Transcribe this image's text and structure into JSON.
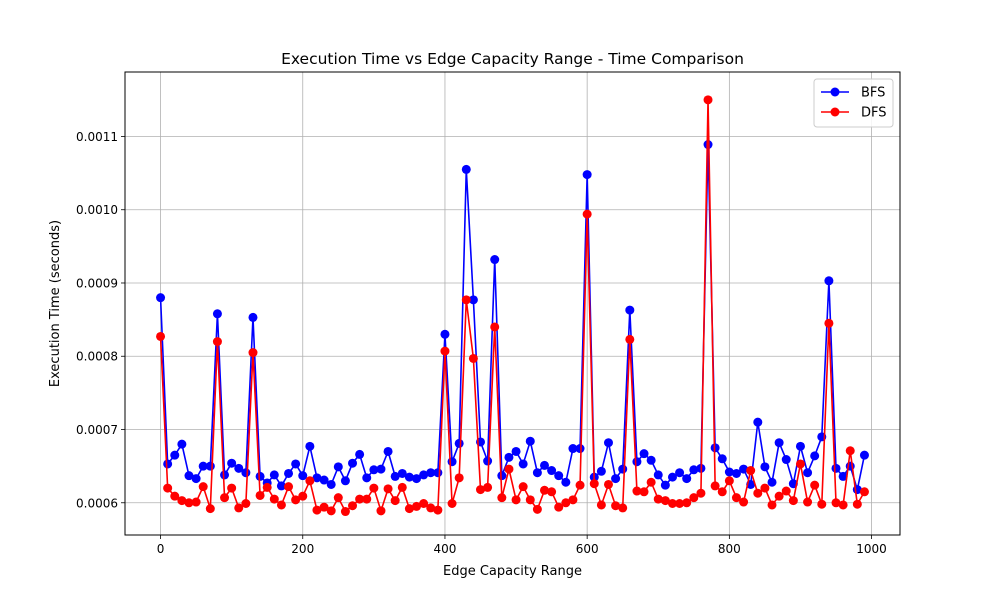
{
  "chart_data": {
    "type": "line",
    "title": "Execution Time vs Edge Capacity Range - Time Comparison",
    "xlabel": "Edge Capacity Range",
    "ylabel": "Execution Time (seconds)",
    "xlim": [
      -50,
      1040
    ],
    "ylim": [
      0.000556,
      0.001188
    ],
    "xticks": [
      0,
      200,
      400,
      600,
      800,
      1000
    ],
    "xtick_labels": [
      "0",
      "200",
      "400",
      "600",
      "800",
      "1000"
    ],
    "yticks": [
      0.0006,
      0.0007,
      0.0008,
      0.0009,
      0.001,
      0.0011
    ],
    "ytick_labels": [
      "0.0006",
      "0.0007",
      "0.0008",
      "0.0009",
      "0.0010",
      "0.0011"
    ],
    "grid": true,
    "legend_position": "top-right",
    "x": [
      0,
      10,
      20,
      30,
      40,
      50,
      60,
      70,
      80,
      90,
      100,
      110,
      120,
      130,
      140,
      150,
      160,
      170,
      180,
      190,
      200,
      210,
      220,
      230,
      240,
      250,
      260,
      270,
      280,
      290,
      300,
      310,
      320,
      330,
      340,
      350,
      360,
      370,
      380,
      390,
      400,
      410,
      420,
      430,
      440,
      450,
      460,
      470,
      480,
      490,
      500,
      510,
      520,
      530,
      540,
      550,
      560,
      570,
      580,
      590,
      600,
      610,
      620,
      630,
      640,
      650,
      660,
      670,
      680,
      690,
      700,
      710,
      720,
      730,
      740,
      750,
      760,
      770,
      780,
      790,
      800,
      810,
      820,
      830,
      840,
      850,
      860,
      870,
      880,
      890,
      900,
      910,
      920,
      930,
      940,
      950,
      960,
      970,
      980,
      990
    ],
    "series": [
      {
        "name": "BFS",
        "color": "#0000ff",
        "values": [
          0.00088,
          0.000653,
          0.000665,
          0.00068,
          0.000637,
          0.000633,
          0.00065,
          0.00065,
          0.000858,
          0.000638,
          0.000654,
          0.000647,
          0.000641,
          0.000853,
          0.000636,
          0.000627,
          0.000638,
          0.000623,
          0.00064,
          0.000653,
          0.000637,
          0.000677,
          0.000634,
          0.000631,
          0.000625,
          0.000649,
          0.00063,
          0.000654,
          0.000666,
          0.000634,
          0.000645,
          0.000646,
          0.00067,
          0.000636,
          0.00064,
          0.000635,
          0.000633,
          0.000638,
          0.000641,
          0.000641,
          0.00083,
          0.000656,
          0.000681,
          0.001055,
          0.000877,
          0.000683,
          0.000657,
          0.000932,
          0.000637,
          0.000662,
          0.00067,
          0.000653,
          0.000684,
          0.000641,
          0.000651,
          0.000644,
          0.000637,
          0.000628,
          0.000674,
          0.000674,
          0.001048,
          0.000635,
          0.000643,
          0.000682,
          0.000633,
          0.000646,
          0.000863,
          0.000656,
          0.000667,
          0.000658,
          0.000638,
          0.000624,
          0.000635,
          0.000641,
          0.000633,
          0.000645,
          0.000647,
          0.001089,
          0.000675,
          0.00066,
          0.000642,
          0.00064,
          0.000646,
          0.000625,
          0.00071,
          0.000649,
          0.000628,
          0.000682,
          0.000659,
          0.000626,
          0.000677,
          0.000641,
          0.000664,
          0.00069,
          0.000903,
          0.000647,
          0.000636,
          0.00065,
          0.000618,
          0.000665
        ]
      },
      {
        "name": "DFS",
        "color": "#ff0000",
        "values": [
          0.000827,
          0.00062,
          0.000609,
          0.000603,
          0.0006,
          0.000601,
          0.000622,
          0.000592,
          0.00082,
          0.000607,
          0.00062,
          0.000593,
          0.000599,
          0.000805,
          0.00061,
          0.000621,
          0.000605,
          0.000597,
          0.000622,
          0.000604,
          0.000609,
          0.00063,
          0.00059,
          0.000594,
          0.000589,
          0.000607,
          0.000588,
          0.000596,
          0.000605,
          0.000605,
          0.00062,
          0.000589,
          0.000619,
          0.000603,
          0.000621,
          0.000592,
          0.000595,
          0.000599,
          0.000593,
          0.00059,
          0.000807,
          0.000599,
          0.000634,
          0.000877,
          0.000797,
          0.000618,
          0.000621,
          0.00084,
          0.000607,
          0.000646,
          0.000604,
          0.000622,
          0.000604,
          0.000591,
          0.000617,
          0.000615,
          0.000594,
          0.0006,
          0.000604,
          0.000624,
          0.000994,
          0.000626,
          0.000597,
          0.000625,
          0.000596,
          0.000593,
          0.000823,
          0.000616,
          0.000615,
          0.000628,
          0.000605,
          0.000603,
          0.000599,
          0.000599,
          0.0006,
          0.000607,
          0.000613,
          0.00115,
          0.000623,
          0.000615,
          0.00063,
          0.000607,
          0.000601,
          0.000644,
          0.000613,
          0.00062,
          0.000597,
          0.000609,
          0.000616,
          0.000603,
          0.000653,
          0.000601,
          0.000624,
          0.000598,
          0.000845,
          0.0006,
          0.000597,
          0.000671,
          0.000598,
          0.000615
        ]
      }
    ]
  }
}
